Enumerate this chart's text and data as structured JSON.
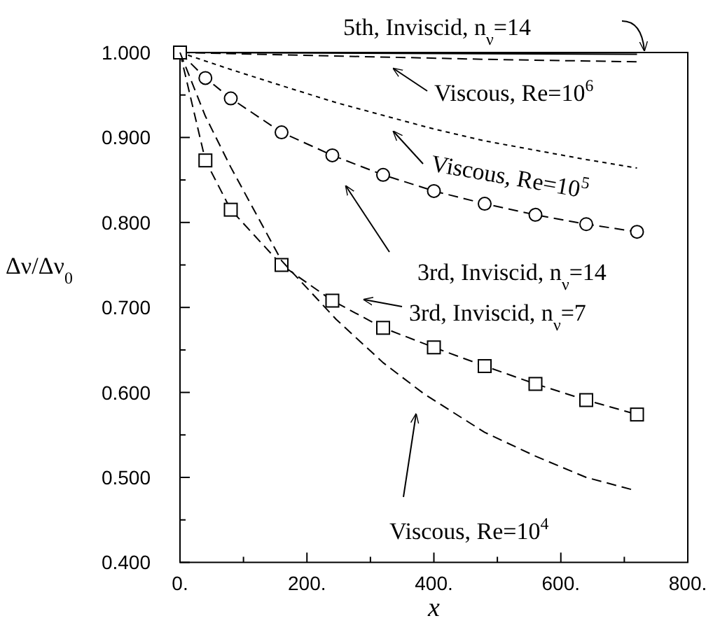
{
  "chart_data": {
    "type": "line",
    "xlabel": "x",
    "ylabel": "Δν/Δν$_{0}$",
    "xlim": [
      0,
      800
    ],
    "ylim": [
      0.4,
      1.0
    ],
    "xticks": [
      {
        "value": 0,
        "label": "0."
      },
      {
        "value": 100,
        "label": null
      },
      {
        "value": 200,
        "label": "200."
      },
      {
        "value": 300,
        "label": null
      },
      {
        "value": 400,
        "label": "400."
      },
      {
        "value": 500,
        "label": null
      },
      {
        "value": 600,
        "label": "600."
      },
      {
        "value": 700,
        "label": null
      },
      {
        "value": 800,
        "label": "800."
      }
    ],
    "yticks": [
      {
        "value": 0.4,
        "label": "0.400"
      },
      {
        "value": 0.45,
        "label": null
      },
      {
        "value": 0.5,
        "label": "0.500"
      },
      {
        "value": 0.55,
        "label": null
      },
      {
        "value": 0.6,
        "label": "0.600"
      },
      {
        "value": 0.65,
        "label": null
      },
      {
        "value": 0.7,
        "label": "0.700"
      },
      {
        "value": 0.75,
        "label": null
      },
      {
        "value": 0.8,
        "label": "0.800"
      },
      {
        "value": 0.85,
        "label": null
      },
      {
        "value": 0.9,
        "label": "0.900"
      },
      {
        "value": 0.95,
        "label": null
      },
      {
        "value": 1.0,
        "label": "1.000"
      }
    ],
    "grid": false,
    "series": [
      {
        "color": "#000000",
        "line_style": "solid",
        "x": [
          0,
          720
        ],
        "values": [
          1.0,
          0.998
        ]
      },
      {
        "color": "#000000",
        "line_style": "dashed",
        "x": [
          0,
          240,
          480,
          720
        ],
        "values": [
          1.0,
          0.996,
          0.992,
          0.989
        ]
      },
      {
        "color": "#000000",
        "line_style": "dotted",
        "x": [
          0,
          80,
          160,
          246,
          320,
          400,
          480,
          560,
          640,
          720
        ],
        "values": [
          1.0,
          0.98,
          0.961,
          0.941,
          0.926,
          0.91,
          0.896,
          0.885,
          0.874,
          0.864
        ]
      },
      {
        "color": "#000000",
        "line_style": "dashed",
        "marker": "circle",
        "x": [
          0,
          40,
          80,
          160,
          240,
          320,
          400,
          480,
          560,
          640,
          720
        ],
        "values": [
          1.0,
          0.97,
          0.946,
          0.906,
          0.879,
          0.856,
          0.837,
          0.822,
          0.809,
          0.798,
          0.789
        ]
      },
      {
        "color": "#000000",
        "line_style": "dashed",
        "marker": "square",
        "x": [
          0,
          40,
          80,
          160,
          240,
          320,
          400,
          480,
          560,
          640,
          720
        ],
        "values": [
          1.0,
          0.873,
          0.815,
          0.75,
          0.708,
          0.676,
          0.653,
          0.631,
          0.61,
          0.591,
          0.574
        ]
      },
      {
        "color": "#000000",
        "line_style": "dashed",
        "x": [
          0,
          40,
          80,
          160,
          246,
          320,
          385,
          480,
          560,
          640,
          715
        ],
        "values": [
          1.0,
          0.925,
          0.865,
          0.755,
          0.686,
          0.635,
          0.598,
          0.553,
          0.525,
          0.5,
          0.485
        ]
      }
    ],
    "annotations": [
      "5th, Inviscid, n$_{ν}$=14",
      "Viscous, Re=10$^{6}$",
      "Viscous, Re=10$^{5}$",
      "3rd, Inviscid, n$_{ν}$=14",
      "3rd, Inviscid, n$_{ν}$=7",
      "Viscous, Re=10$^{4}$"
    ]
  }
}
